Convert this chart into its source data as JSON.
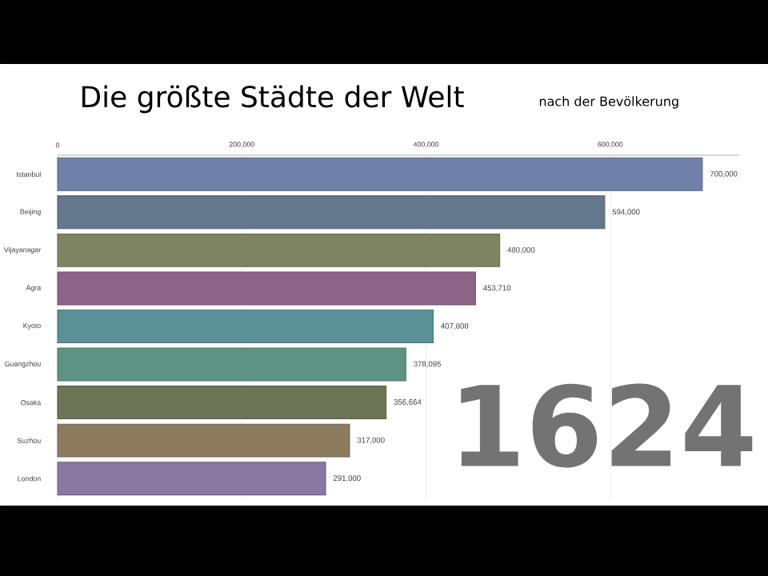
{
  "chart_data": {
    "type": "bar",
    "orientation": "horizontal",
    "title": "Die größte Städte der Welt",
    "subtitle": "nach der Bevölkerung",
    "categories": [
      "Istanbul",
      "Beijing",
      "Vijayanagar",
      "Agra",
      "Kyoto",
      "Guangzhou",
      "Osaka",
      "Suzhou",
      "London"
    ],
    "values": [
      700000,
      594000,
      480000,
      453710,
      407808,
      378095,
      356664,
      317000,
      291000
    ],
    "value_labels": [
      "700,000",
      "594,000",
      "480,000",
      "453,710",
      "407,808",
      "378,095",
      "356,664",
      "317,000",
      "291,000"
    ],
    "colors": [
      "#7180a8",
      "#64778c",
      "#7e8462",
      "#8d6488",
      "#5b9196",
      "#5e9384",
      "#6e7556",
      "#8c7b5e",
      "#8a78a0"
    ],
    "xlim": [
      0,
      740000
    ],
    "xticks": [
      0,
      {
        "value": 200000,
        "label": "200,000"
      },
      {
        "value": 400000,
        "label": "400,000"
      },
      {
        "value": 600000,
        "label": "600,000"
      }
    ],
    "grid": "x",
    "annotations": [
      "1624"
    ]
  }
}
